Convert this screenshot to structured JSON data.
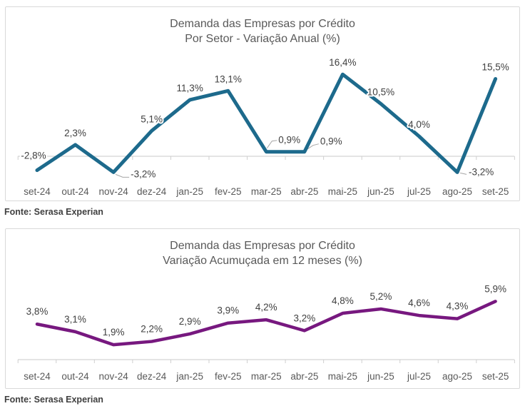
{
  "page": {
    "background": "#ffffff"
  },
  "chart_data": [
    {
      "type": "line",
      "title": "Demanda das Empresas por Crédito",
      "subtitle": "Por Setor - Variação Anual (%)",
      "categories": [
        "set-24",
        "out-24",
        "nov-24",
        "dez-24",
        "jan-25",
        "fev-25",
        "mar-25",
        "abr-25",
        "mai-25",
        "jun-25",
        "jul-25",
        "ago-25",
        "set-25"
      ],
      "values": [
        -2.8,
        2.3,
        -3.2,
        5.1,
        11.3,
        13.1,
        0.9,
        0.9,
        16.4,
        10.5,
        4.0,
        -3.2,
        15.5
      ],
      "labels": [
        "-2,8%",
        "2,3%",
        "-3,2%",
        "5,1%",
        "11,3%",
        "13,1%",
        "0,9%",
        "0,9%",
        "16,4%",
        "10,5%",
        "4,0%",
        "-3,2%",
        "15,5%"
      ],
      "line_color": "#1d6a8c",
      "ylim": [
        -5,
        18
      ],
      "grid": "zero-line-only",
      "legend_position": "none",
      "source": "Fonte: Serasa Experian"
    },
    {
      "type": "line",
      "title": "Demanda das Empresas por Crédito",
      "subtitle": "Variação Acumuçada em 12 meses (%)",
      "categories": [
        "set-24",
        "out-24",
        "nov-24",
        "dez-24",
        "jan-25",
        "fev-25",
        "mar-25",
        "abr-25",
        "mai-25",
        "jun-25",
        "jul-25",
        "ago-25",
        "set-25"
      ],
      "values": [
        3.8,
        3.1,
        1.9,
        2.2,
        2.9,
        3.9,
        4.2,
        3.2,
        4.8,
        5.2,
        4.6,
        4.3,
        5.9
      ],
      "labels": [
        "3,8%",
        "3,1%",
        "1,9%",
        "2,2%",
        "2,9%",
        "3,9%",
        "4,2%",
        "3,2%",
        "4,8%",
        "5,2%",
        "4,6%",
        "4,3%",
        "5,9%"
      ],
      "line_color": "#77187f",
      "ylim": [
        0,
        7
      ],
      "grid": "off",
      "legend_position": "none",
      "source": "Fonte: Serasa Experian"
    }
  ]
}
